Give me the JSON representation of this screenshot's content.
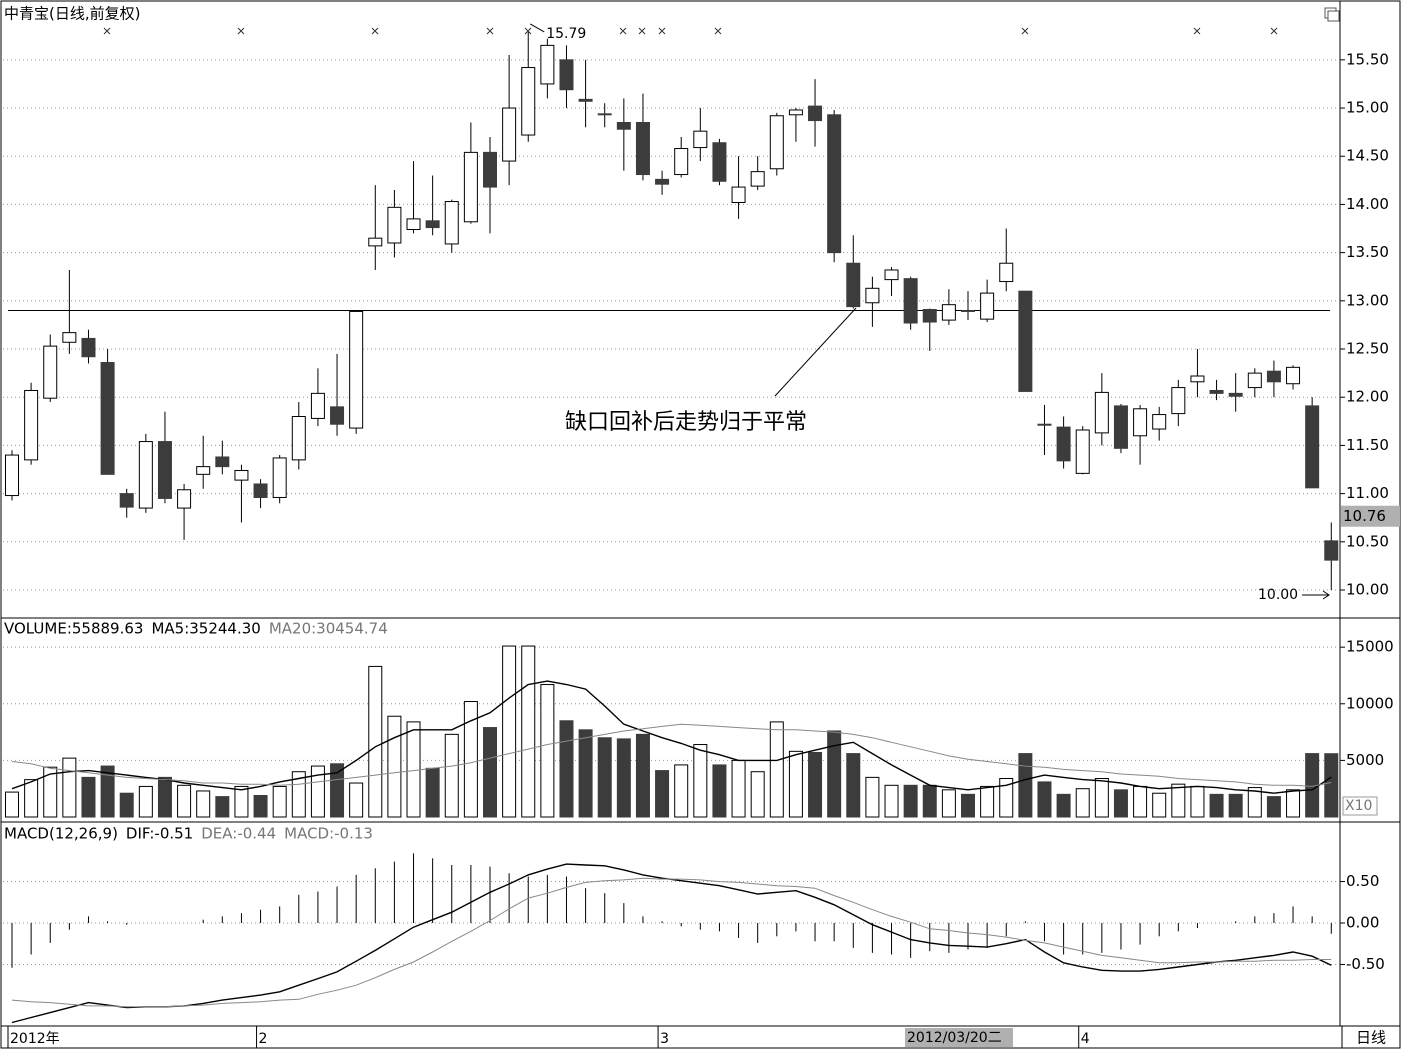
{
  "chart_data": [
    {
      "type": "candlestick",
      "title": "中青宝(日线,前复权)",
      "categories": [
        "2012年",
        null,
        null,
        null,
        null,
        null,
        null,
        null,
        null,
        null,
        null,
        null,
        null,
        "2",
        null,
        null,
        null,
        null,
        null,
        null,
        null,
        null,
        null,
        null,
        null,
        null,
        null,
        null,
        null,
        null,
        null,
        null,
        null,
        null,
        "3",
        null,
        null,
        null,
        null,
        null,
        null,
        null,
        null,
        null,
        null,
        null,
        null,
        null,
        null,
        null,
        null,
        null,
        null,
        null,
        null,
        null,
        "4",
        null,
        null,
        null,
        null,
        null,
        null,
        null,
        null,
        null,
        null,
        null,
        null,
        null
      ],
      "open": [
        10.98,
        11.35,
        11.99,
        12.57,
        12.61,
        12.36,
        11.0,
        10.85,
        11.54,
        10.85,
        11.2,
        11.38,
        11.14,
        11.1,
        10.96,
        11.35,
        11.78,
        11.9,
        11.68,
        13.57,
        13.6,
        13.74,
        13.83,
        13.59,
        13.82,
        14.54,
        14.45,
        14.72,
        15.25,
        15.5,
        15.09,
        14.94,
        14.85,
        14.85,
        14.26,
        14.31,
        14.59,
        14.64,
        14.02,
        14.19,
        14.37,
        14.93,
        15.02,
        14.93,
        13.39,
        12.98,
        13.22,
        13.23,
        12.91,
        12.8,
        12.9,
        12.81,
        13.2,
        13.1,
        11.72,
        11.69,
        11.21,
        11.63,
        11.91,
        11.6,
        11.67,
        11.83,
        12.16,
        12.07,
        12.04,
        12.1,
        12.27,
        12.14,
        11.91,
        10.51
      ],
      "high": [
        11.45,
        12.15,
        12.65,
        13.32,
        12.7,
        12.5,
        11.05,
        11.62,
        11.85,
        11.1,
        11.6,
        11.55,
        11.3,
        11.15,
        11.4,
        11.95,
        12.3,
        12.45,
        12.89,
        14.2,
        14.15,
        14.45,
        14.3,
        14.05,
        14.85,
        14.7,
        15.55,
        15.79,
        15.72,
        15.65,
        15.5,
        15.05,
        15.1,
        15.15,
        14.35,
        14.7,
        15.0,
        14.68,
        14.5,
        14.5,
        14.95,
        15.0,
        15.3,
        14.98,
        13.68,
        13.25,
        13.35,
        13.25,
        12.92,
        13.12,
        13.1,
        13.22,
        13.75,
        13.1,
        11.92,
        11.8,
        11.7,
        12.25,
        11.93,
        11.92,
        11.9,
        12.18,
        12.5,
        12.18,
        12.25,
        12.3,
        12.38,
        12.33,
        12.0,
        10.7
      ],
      "low": [
        10.93,
        11.3,
        11.95,
        12.45,
        12.35,
        11.2,
        10.75,
        10.8,
        10.9,
        10.52,
        11.05,
        11.2,
        10.7,
        10.85,
        10.9,
        11.25,
        11.7,
        11.6,
        11.62,
        13.32,
        13.45,
        13.7,
        13.68,
        13.5,
        13.8,
        13.7,
        14.2,
        14.65,
        15.1,
        15.0,
        14.8,
        14.8,
        14.35,
        14.25,
        14.1,
        14.28,
        14.45,
        14.2,
        13.85,
        14.15,
        14.3,
        14.65,
        14.6,
        13.4,
        12.92,
        12.73,
        13.05,
        12.7,
        12.48,
        12.75,
        12.8,
        12.78,
        13.1,
        12.06,
        11.4,
        11.26,
        11.2,
        11.5,
        11.42,
        11.3,
        11.55,
        11.7,
        12.0,
        11.97,
        11.85,
        12.0,
        12.0,
        12.08,
        11.06,
        10.0
      ],
      "close": [
        11.4,
        12.07,
        12.53,
        12.67,
        12.42,
        11.2,
        10.86,
        11.54,
        10.95,
        11.04,
        11.28,
        11.28,
        11.24,
        10.96,
        11.37,
        11.8,
        12.04,
        11.72,
        12.89,
        13.65,
        13.97,
        13.85,
        13.76,
        14.03,
        14.54,
        14.18,
        15.0,
        15.42,
        15.65,
        15.19,
        15.07,
        14.93,
        14.78,
        14.31,
        14.21,
        14.58,
        14.76,
        14.24,
        14.18,
        14.34,
        14.92,
        14.98,
        14.87,
        13.5,
        12.94,
        13.13,
        13.32,
        12.77,
        12.78,
        12.96,
        12.89,
        13.08,
        13.39,
        12.06,
        11.71,
        11.34,
        11.66,
        12.05,
        11.47,
        11.88,
        11.82,
        12.1,
        12.22,
        12.04,
        12.01,
        12.25,
        12.16,
        12.31,
        11.06,
        10.31
      ],
      "ylim": [
        9.72,
        16.1
      ],
      "yticks": [
        {
          "value": 10,
          "label": "10.00"
        },
        {
          "value": 10.5,
          "label": "10.50"
        },
        {
          "value": 11,
          "label": "11.00"
        },
        {
          "value": 11.5,
          "label": "11.50"
        },
        {
          "value": 12,
          "label": "12.00"
        },
        {
          "value": 12.5,
          "label": "12.50"
        },
        {
          "value": 13,
          "label": "13.00"
        },
        {
          "value": 13.5,
          "label": "13.50"
        },
        {
          "value": 14,
          "label": "14.00"
        },
        {
          "value": 14.5,
          "label": "14.50"
        },
        {
          "value": 15,
          "label": "15.00"
        },
        {
          "value": 15.5,
          "label": "15.50"
        }
      ],
      "grid": true,
      "up_color": "#ffffff",
      "down_color": "#3c3c3c",
      "reference_line": 12.9,
      "annotation": "缺口回补后走势归于平常",
      "max_marker": 15.79,
      "min_marker": {
        "value": 10,
        "label": "10.00"
      },
      "price_marker": {
        "value": 10.76,
        "label": "10.76"
      },
      "cursor_label": "2012/03/20二",
      "period_label": "日线"
    },
    {
      "type": "volume",
      "header": [
        "VOLUME:55889.63",
        "MA5:35244.30",
        "MA20:30454.74"
      ],
      "header_colors": [
        "#000000",
        "#000000",
        "#777777"
      ],
      "values": [
        2200,
        3300,
        4400,
        5200,
        3500,
        4500,
        2100,
        2700,
        3500,
        2800,
        2300,
        1800,
        2700,
        1900,
        2700,
        4000,
        4500,
        4700,
        3000,
        13300,
        8900,
        8400,
        4300,
        7300,
        10200,
        7900,
        15100,
        15100,
        11700,
        8500,
        7700,
        7000,
        6900,
        7300,
        4100,
        4600,
        6400,
        4600,
        5000,
        4000,
        8400,
        5800,
        5700,
        7600,
        5600,
        3500,
        2800,
        2800,
        2800,
        2400,
        2000,
        2700,
        3400,
        5600,
        3100,
        2000,
        2500,
        3400,
        2400,
        2700,
        2100,
        2900,
        2700,
        2000,
        2000,
        2600,
        1800,
        2400,
        5600,
        5588.963
      ],
      "series": [
        {
          "color": "#000000",
          "values": [
            2500,
            3100,
            3800,
            4000,
            4100,
            3900,
            3700,
            3500,
            3300,
            3000,
            2800,
            2600,
            2400,
            2700,
            3100,
            3400,
            3700,
            3900,
            5000,
            6200,
            7000,
            7700,
            7700,
            7700,
            8500,
            9200,
            10500,
            11700,
            12000,
            11700,
            11300,
            9800,
            8200,
            7600,
            7000,
            6500,
            5900,
            5500,
            5000,
            5000,
            5000,
            5500,
            5900,
            6300,
            6600,
            5600,
            4600,
            3700,
            2800,
            2600,
            2400,
            2600,
            2800,
            3300,
            3700,
            3500,
            3300,
            3200,
            3000,
            2700,
            2500,
            2600,
            2700,
            2600,
            2400,
            2300,
            2100,
            2300,
            2400,
            3524.43
          ]
        },
        {
          "color": "#888888",
          "values": [
            4900,
            4700,
            4300,
            4100,
            3900,
            3700,
            3500,
            3400,
            3300,
            3200,
            3000,
            3000,
            2900,
            2900,
            2800,
            2900,
            3100,
            3300,
            3500,
            3700,
            3900,
            4100,
            4300,
            4500,
            4800,
            5200,
            5600,
            6000,
            6400,
            6700,
            7000,
            7300,
            7600,
            7800,
            8000,
            8200,
            8100,
            8000,
            7900,
            7800,
            7700,
            7700,
            7600,
            7500,
            7300,
            7000,
            6600,
            6200,
            5800,
            5400,
            5100,
            4900,
            4700,
            4500,
            4400,
            4200,
            4100,
            4000,
            3800,
            3700,
            3600,
            3400,
            3300,
            3200,
            3100,
            2900,
            2800,
            2800,
            2700,
            3045.474
          ]
        }
      ],
      "ylim": [
        0,
        17400
      ],
      "yticks": [
        5000,
        10000,
        15000
      ],
      "grid": true,
      "unit_label": "X10"
    },
    {
      "type": "macd",
      "header": [
        "MACD(12,26,9)",
        "DIF:-0.51",
        "DEA:-0.44",
        "MACD:-0.13"
      ],
      "header_colors": [
        "#000000",
        "#000000",
        "#777777",
        "#777777"
      ],
      "values": [
        -0.54,
        -0.38,
        -0.24,
        -0.08,
        0.08,
        0.02,
        -0.02,
        0,
        0,
        0,
        0.04,
        0.08,
        0.12,
        0.16,
        0.2,
        0.34,
        0.38,
        0.44,
        0.58,
        0.66,
        0.74,
        0.84,
        0.78,
        0.7,
        0.7,
        0.68,
        0.6,
        0.56,
        0.58,
        0.56,
        0.42,
        0.36,
        0.24,
        0.08,
        0.02,
        -0.04,
        -0.08,
        -0.1,
        -0.18,
        -0.24,
        -0.16,
        -0.1,
        -0.22,
        -0.22,
        -0.3,
        -0.36,
        -0.38,
        -0.42,
        -0.34,
        -0.36,
        -0.32,
        -0.3,
        -0.16,
        0.02,
        -0.22,
        -0.38,
        -0.38,
        -0.36,
        -0.32,
        -0.26,
        -0.16,
        -0.1,
        -0.06,
        0,
        0.02,
        0.08,
        0.12,
        0.2,
        0.08,
        -0.13
      ],
      "series": [
        {
          "color": "#000000",
          "values": [
            -1.2,
            -1.14,
            -1.08,
            -1.02,
            -0.96,
            -0.99,
            -1.02,
            -1.01,
            -1.01,
            -1,
            -0.97,
            -0.93,
            -0.9,
            -0.87,
            -0.83,
            -0.75,
            -0.67,
            -0.59,
            -0.46,
            -0.33,
            -0.19,
            -0.05,
            0.04,
            0.13,
            0.25,
            0.37,
            0.47,
            0.58,
            0.65,
            0.71,
            0.7,
            0.69,
            0.64,
            0.58,
            0.54,
            0.51,
            0.48,
            0.45,
            0.4,
            0.35,
            0.37,
            0.39,
            0.31,
            0.22,
            0.1,
            -0.02,
            -0.11,
            -0.2,
            -0.24,
            -0.27,
            -0.28,
            -0.29,
            -0.25,
            -0.2,
            -0.35,
            -0.48,
            -0.53,
            -0.57,
            -0.58,
            -0.58,
            -0.56,
            -0.53,
            -0.5,
            -0.47,
            -0.45,
            -0.42,
            -0.39,
            -0.35,
            -0.4,
            -0.51
          ]
        },
        {
          "color": "#888888",
          "values": [
            -0.93,
            -0.95,
            -0.96,
            -0.98,
            -1,
            -1,
            -1.01,
            -1.01,
            -1.01,
            -1,
            -0.99,
            -0.97,
            -0.96,
            -0.95,
            -0.93,
            -0.92,
            -0.86,
            -0.81,
            -0.75,
            -0.66,
            -0.56,
            -0.47,
            -0.35,
            -0.22,
            -0.1,
            0.03,
            0.17,
            0.3,
            0.36,
            0.43,
            0.49,
            0.51,
            0.52,
            0.54,
            0.53,
            0.53,
            0.52,
            0.5,
            0.49,
            0.47,
            0.45,
            0.44,
            0.42,
            0.33,
            0.25,
            0.16,
            0.08,
            0.01,
            -0.07,
            -0.09,
            -0.12,
            -0.14,
            -0.17,
            -0.21,
            -0.24,
            -0.29,
            -0.34,
            -0.39,
            -0.42,
            -0.45,
            -0.48,
            -0.48,
            -0.47,
            -0.47,
            -0.46,
            -0.46,
            -0.45,
            -0.45,
            -0.44,
            -0.44
          ]
        }
      ],
      "ylim": [
        -1.23,
        1.17
      ],
      "yticks": [
        {
          "value": 0.5,
          "label": "0.50"
        },
        {
          "value": 0,
          "label": "0.00"
        },
        {
          "value": -0.5,
          "label": "-0.50"
        }
      ],
      "grid": true
    }
  ]
}
